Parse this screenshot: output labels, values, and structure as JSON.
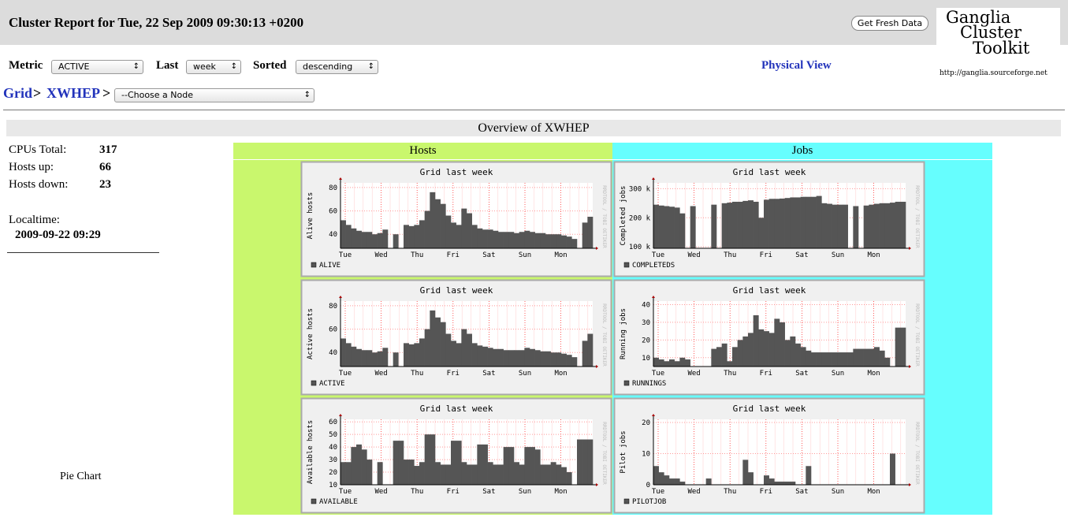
{
  "header": {
    "title": "Cluster Report for Tue, 22 Sep 2009 09:30:13 +0200",
    "button": "Get Fresh Data",
    "logo_lines": [
      "Ganglia",
      "Cluster",
      "Toolkit"
    ],
    "logo_url": "http://ganglia.sourceforge.net"
  },
  "controls": {
    "metric_label": "Metric",
    "metric": "ACTIVE",
    "last_label": "Last",
    "last": "week",
    "sorted_label": "Sorted",
    "sorted": "descending",
    "physical_view": "Physical View"
  },
  "breadcrumb": {
    "grid": "Grid",
    "separator": ">",
    "cluster": "XWHEP",
    "node_select": "--Choose a Node"
  },
  "overview": {
    "title": "Overview of XWHEP",
    "stats": [
      {
        "label": "CPUs Total:",
        "value": 317
      },
      {
        "label": "Hosts up:",
        "value": 66
      },
      {
        "label": "Hosts down:",
        "value": 23
      }
    ],
    "localtime_label": "Localtime:",
    "localtime": "2009-09-22 09:29",
    "pie_chart": "Pie Chart"
  },
  "columns": [
    {
      "title": "Hosts",
      "graphs": [
        {
          "title": "Grid  last week",
          "ylabel": "Alive hosts",
          "legend": "ALIVE",
          "side_text": "RRDTOOL / TOBI OETIKER",
          "categories": [
            "Tue",
            "Wed",
            "Thu",
            "Fri",
            "Sat",
            "Sun",
            "Mon"
          ],
          "ylim": [
            28,
            84
          ],
          "yticks": [
            40,
            60,
            80
          ],
          "values": [
            52,
            48,
            45,
            43,
            42,
            42,
            40,
            41,
            44,
            null,
            40,
            null,
            48,
            47,
            48,
            52,
            60,
            76,
            70,
            66,
            56,
            50,
            48,
            62,
            58,
            48,
            45,
            44,
            44,
            43,
            42,
            42,
            42,
            41,
            42,
            43,
            42,
            41,
            41,
            40,
            40,
            40,
            39,
            38,
            36,
            null,
            50,
            55
          ]
        },
        {
          "title": "Grid  last week",
          "ylabel": "Active hosts",
          "legend": "ACTIVE",
          "side_text": "RRDTOOL / TOBI OETIKER",
          "categories": [
            "Tue",
            "Wed",
            "Thu",
            "Fri",
            "Sat",
            "Sun",
            "Mon"
          ],
          "ylim": [
            28,
            84
          ],
          "yticks": [
            40,
            60,
            80
          ],
          "values": [
            52,
            48,
            45,
            43,
            42,
            42,
            40,
            41,
            44,
            null,
            40,
            null,
            48,
            47,
            48,
            52,
            60,
            76,
            70,
            66,
            56,
            50,
            48,
            60,
            56,
            48,
            46,
            45,
            44,
            43,
            43,
            42,
            42,
            42,
            42,
            44,
            43,
            42,
            41,
            41,
            40,
            40,
            39,
            38,
            36,
            null,
            50,
            56
          ]
        },
        {
          "title": "Grid  last week",
          "ylabel": "Available hosts",
          "legend": "AVAILABLE",
          "side_text": "RRDTOOL / TOBI OETIKER",
          "categories": [
            "Tue",
            "Wed",
            "Thu",
            "Fri",
            "Sat",
            "Sun",
            "Mon"
          ],
          "ylim": [
            10,
            62
          ],
          "yticks": [
            10,
            20,
            30,
            40,
            50,
            60
          ],
          "values": [
            28,
            28,
            40,
            42,
            38,
            30,
            null,
            28,
            null,
            null,
            45,
            45,
            30,
            30,
            25,
            28,
            50,
            50,
            28,
            26,
            26,
            45,
            45,
            28,
            26,
            26,
            42,
            42,
            28,
            26,
            26,
            40,
            40,
            28,
            26,
            40,
            40,
            38,
            26,
            26,
            28,
            26,
            24,
            20,
            null,
            46,
            46,
            46
          ]
        }
      ]
    },
    {
      "title": "Jobs",
      "graphs": [
        {
          "title": "Grid  last week",
          "ylabel": "Completed jobs",
          "legend": "COMPLETEDS",
          "side_text": "RRDTOOL / TOBI OETIKER",
          "categories": [
            "Tue",
            "Wed",
            "Thu",
            "Fri",
            "Sat",
            "Sun",
            "Mon"
          ],
          "ylim": [
            95000,
            320000
          ],
          "yticks": [
            {
              "value": 100000,
              "label": "100 k"
            },
            {
              "value": 200000,
              "label": "200 k"
            },
            {
              "value": 300000,
              "label": "300 k"
            }
          ],
          "values": [
            245000,
            242000,
            240000,
            238000,
            235000,
            215000,
            null,
            240000,
            null,
            null,
            null,
            245000,
            null,
            250000,
            252000,
            255000,
            255000,
            258000,
            260000,
            255000,
            200000,
            262000,
            265000,
            265000,
            266000,
            268000,
            270000,
            270000,
            272000,
            272000,
            272000,
            275000,
            250000,
            248000,
            245000,
            245000,
            245000,
            null,
            240000,
            null,
            242000,
            245000,
            248000,
            250000,
            250000,
            252000,
            255000,
            255000
          ]
        },
        {
          "title": "Grid  last week",
          "ylabel": "Running jobs",
          "legend": "RUNNINGS",
          "side_text": "RRDTOOL / TOBI OETIKER",
          "categories": [
            "Tue",
            "Wed",
            "Thu",
            "Fri",
            "Sat",
            "Sun",
            "Mon"
          ],
          "ylim": [
            5,
            42
          ],
          "yticks": [
            10,
            20,
            30,
            40
          ],
          "values": [
            10,
            9,
            8,
            9,
            8,
            10,
            9,
            5,
            null,
            5,
            null,
            15,
            16,
            18,
            8,
            16,
            20,
            22,
            24,
            34,
            26,
            25,
            24,
            32,
            30,
            20,
            22,
            18,
            16,
            14,
            13,
            13,
            13,
            13,
            13,
            13,
            13,
            13,
            15,
            15,
            15,
            15,
            16,
            14,
            10,
            null,
            27,
            27
          ]
        },
        {
          "title": "Grid  last week",
          "ylabel": "Pilot jobs",
          "legend": "PILOTJOB",
          "side_text": "RRDTOOL / TOBI OETIKER",
          "categories": [
            "Tue",
            "Wed",
            "Thu",
            "Fri",
            "Sat",
            "Sun",
            "Mon"
          ],
          "ylim": [
            0,
            21
          ],
          "yticks": [
            0,
            10,
            20
          ],
          "values": [
            6,
            4,
            3,
            2,
            2,
            1,
            0,
            0,
            null,
            0,
            2,
            0,
            0,
            0,
            0,
            0,
            0,
            8,
            4,
            0,
            0,
            3,
            2,
            1,
            1,
            1,
            1,
            0,
            0,
            6,
            0,
            0,
            0,
            0,
            0,
            0,
            0,
            0,
            0,
            0,
            0,
            0,
            0,
            0,
            0,
            10,
            0,
            0
          ]
        }
      ]
    }
  ]
}
